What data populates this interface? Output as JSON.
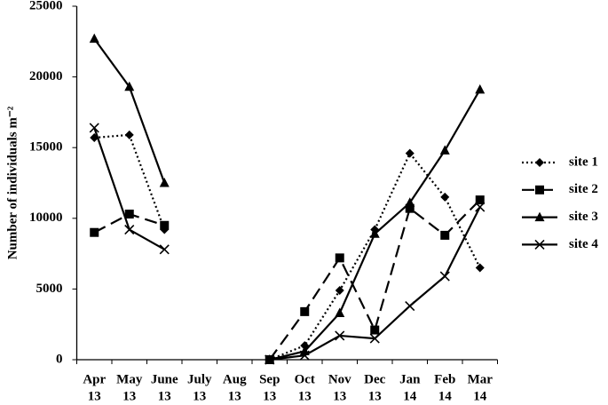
{
  "chart_data": {
    "type": "line",
    "y_label": "Number of individuals m⁻²",
    "categories": [
      [
        "Apr",
        "13"
      ],
      [
        "May",
        "13"
      ],
      [
        "June",
        "13"
      ],
      [
        "July",
        "13"
      ],
      [
        "Aug",
        "13"
      ],
      [
        "Sep",
        "13"
      ],
      [
        "Oct",
        "13"
      ],
      [
        "Nov",
        "13"
      ],
      [
        "Dec",
        "13"
      ],
      [
        "Jan",
        "14"
      ],
      [
        "Feb",
        "14"
      ],
      [
        "Mar",
        "14"
      ]
    ],
    "series": [
      {
        "name": "site 1",
        "color": "#000000",
        "line_style": "dotted",
        "marker": "diamond",
        "values": [
          15700,
          15900,
          9200,
          null,
          null,
          0,
          1000,
          4900,
          9200,
          14600,
          11500,
          6500
        ]
      },
      {
        "name": "site 2",
        "color": "#000000",
        "line_style": "dashed",
        "marker": "square",
        "values": [
          9000,
          10300,
          9500,
          null,
          null,
          0,
          3400,
          7200,
          2100,
          10700,
          8800,
          11300
        ]
      },
      {
        "name": "site 3",
        "color": "#000000",
        "line_style": "solid",
        "marker": "triangle",
        "values": [
          22700,
          19300,
          12500,
          null,
          null,
          0,
          600,
          3300,
          8900,
          11100,
          14800,
          19100
        ]
      },
      {
        "name": "site 4",
        "color": "#000000",
        "line_style": "solid",
        "marker": "x",
        "values": [
          16400,
          9200,
          7800,
          null,
          null,
          0,
          300,
          1700,
          1500,
          3800,
          5900,
          10800
        ]
      }
    ],
    "ylim": [
      0,
      25000
    ],
    "yticks": [
      0,
      5000,
      10000,
      15000,
      20000,
      25000
    ],
    "grid": false,
    "legend": "right"
  }
}
